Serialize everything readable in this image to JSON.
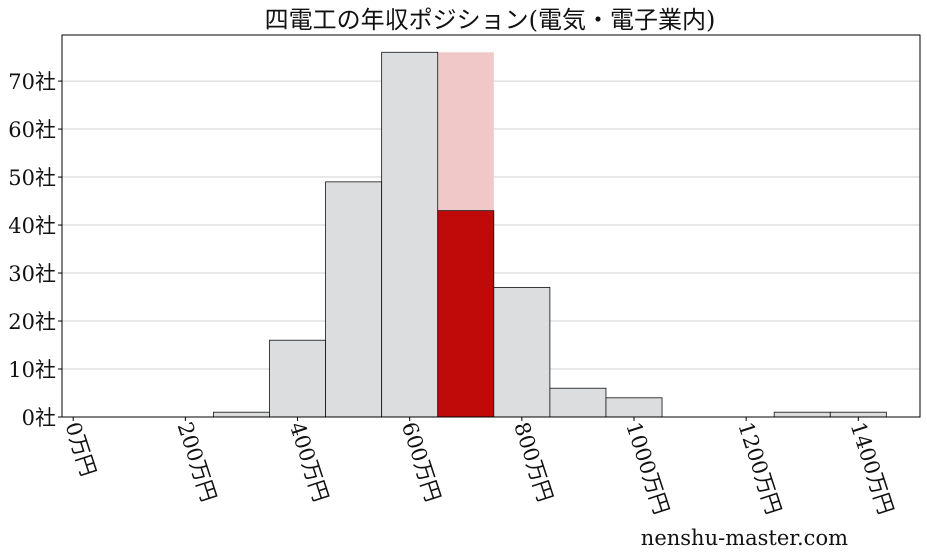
{
  "chart_data": {
    "type": "bar",
    "title": "四電工の年収ポジション(電気・電子業内)",
    "xlabel": "",
    "ylabel": "",
    "bins": [
      {
        "from": 250,
        "to": 350,
        "value": 1
      },
      {
        "from": 350,
        "to": 450,
        "value": 16
      },
      {
        "from": 450,
        "to": 550,
        "value": 49
      },
      {
        "from": 550,
        "to": 650,
        "value": 76
      },
      {
        "from": 650,
        "to": 750,
        "value": 43,
        "highlight": true
      },
      {
        "from": 750,
        "to": 850,
        "value": 27
      },
      {
        "from": 850,
        "to": 950,
        "value": 6
      },
      {
        "from": 950,
        "to": 1050,
        "value": 4
      },
      {
        "from": 1250,
        "to": 1350,
        "value": 1
      },
      {
        "from": 1350,
        "to": 1450,
        "value": 1
      }
    ],
    "highlight_band": {
      "from": 650,
      "to": 750,
      "top": 76
    },
    "xlim": [
      -20,
      1510
    ],
    "ylim": [
      0,
      79.6
    ],
    "xticks": [
      0,
      200,
      400,
      600,
      800,
      1000,
      1200,
      1400
    ],
    "xtick_labels": [
      "0万円",
      "200万円",
      "400万円",
      "600万円",
      "800万円",
      "1000万円",
      "1200万円",
      "1400万円"
    ],
    "yticks": [
      0,
      10,
      20,
      30,
      40,
      50,
      60,
      70
    ],
    "ytick_labels": [
      "0社",
      "10社",
      "20社",
      "30社",
      "40社",
      "50社",
      "60社",
      "70社"
    ],
    "grid": "horizontal",
    "colors": {
      "bar": "#dcdddf",
      "highlight": "#c00a0a",
      "band": "#f0c8c8",
      "grid": "#d0d0d0"
    }
  },
  "watermark": "nenshu-master.com"
}
